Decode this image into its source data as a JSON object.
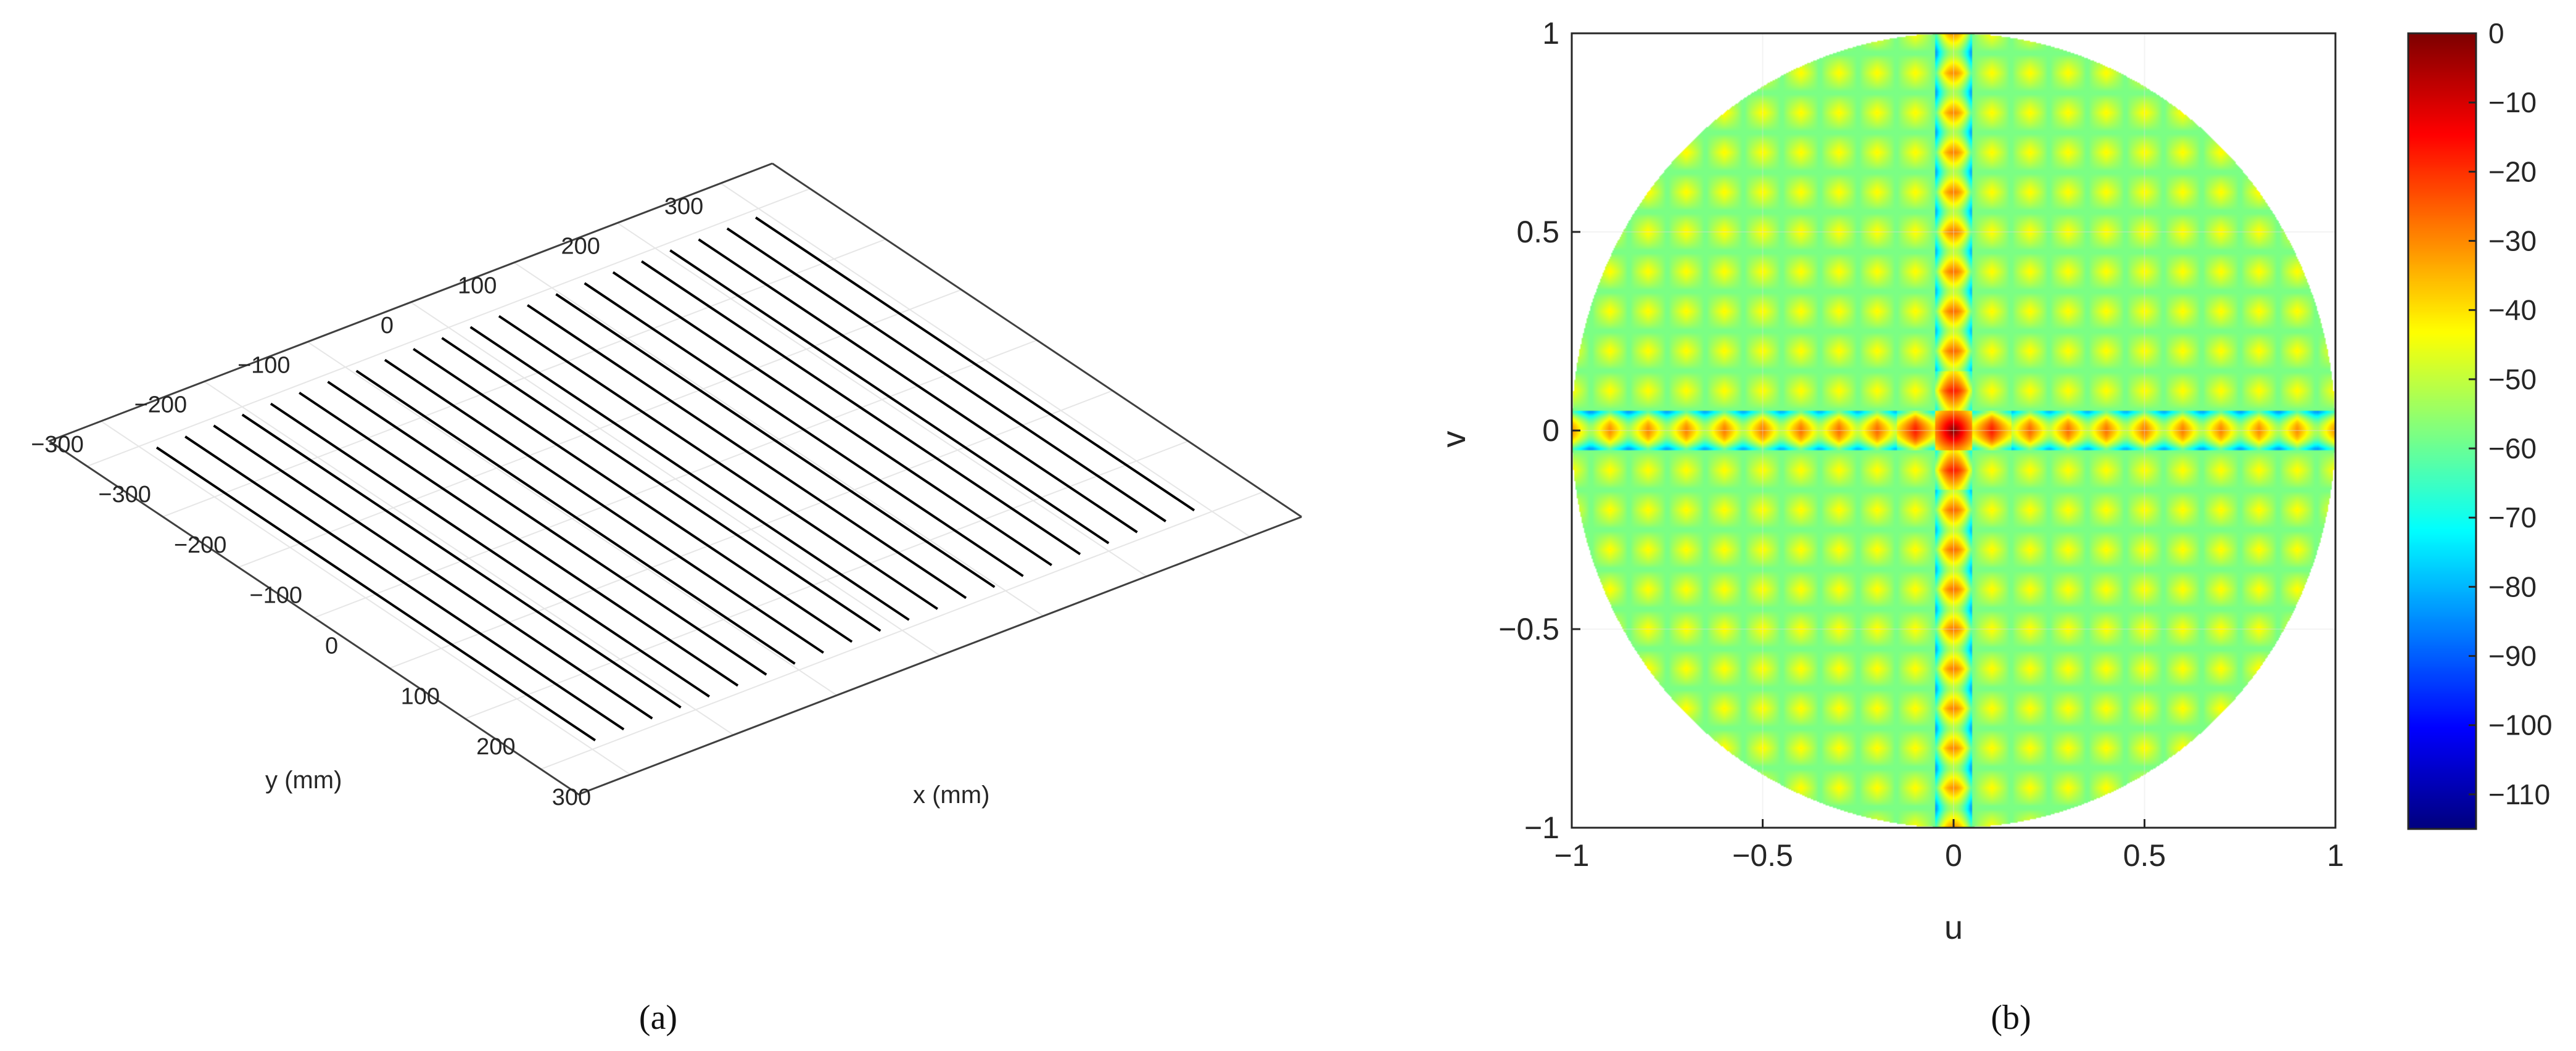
{
  "chart_data": [
    {
      "type": "other",
      "panel_label": "(a)",
      "xlabel": "x (mm)",
      "ylabel": "y (mm)",
      "xlim": [
        -350,
        350
      ],
      "ylim": [
        -350,
        350
      ],
      "x_ticks": [
        "−300",
        "−200",
        "−100",
        "0",
        "100",
        "200",
        "300"
      ],
      "y_ticks": [
        "−300",
        "−200",
        "−100",
        "0",
        "100",
        "200",
        "300"
      ],
      "x_tick_values": [
        -300,
        -200,
        -100,
        0,
        100,
        200,
        300
      ],
      "y_tick_values": [
        -300,
        -200,
        -100,
        0,
        100,
        200,
        300
      ],
      "grid": true,
      "element_lines": {
        "count": 22,
        "y_range": [
          -290,
          290
        ],
        "x_range": [
          -290,
          290
        ],
        "color": "#000000"
      }
    },
    {
      "type": "heatmap",
      "panel_label": "(b)",
      "xlabel": "u",
      "ylabel": "v",
      "xlim": [
        -1,
        1
      ],
      "ylim": [
        -1,
        1
      ],
      "x_ticks": [
        "−1",
        "−0.5",
        "0",
        "0.5",
        "1"
      ],
      "y_ticks": [
        "−1",
        "−0.5",
        "0",
        "0.5",
        "1"
      ],
      "x_tick_values": [
        -1,
        -0.5,
        0,
        0.5,
        1
      ],
      "y_tick_values": [
        -1,
        -0.5,
        0,
        0.5,
        1
      ],
      "grid": true,
      "colormap": "jet",
      "clim": [
        -115,
        0
      ],
      "colorbar_ticks": [
        "0",
        "−10",
        "−20",
        "−30",
        "−40",
        "−50",
        "−60",
        "−70",
        "−80",
        "−90",
        "−100",
        "−110"
      ],
      "colorbar_tick_values": [
        0,
        -10,
        -20,
        -30,
        -40,
        -50,
        -60,
        -70,
        -80,
        -90,
        -100,
        -110
      ],
      "colorbar_location": "right",
      "peak_db": 0,
      "cut_sidelobe_db": -25,
      "offaxis_sidelobe_db": -48,
      "background_db": -58,
      "lobe_spacing": 0.1,
      "visible_region": "u^2 + v^2 <= 1"
    }
  ]
}
